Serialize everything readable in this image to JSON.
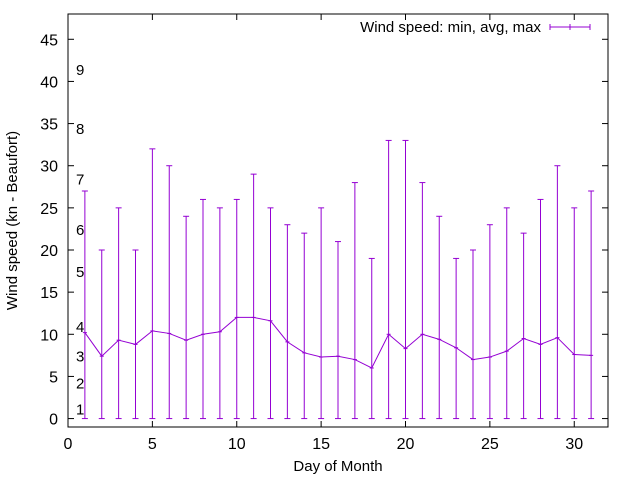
{
  "chart_data": {
    "type": "line",
    "xlabel": "Day of Month",
    "ylabel": "Wind speed (kn - Beaufort)",
    "xlim": [
      0,
      32
    ],
    "ylim": [
      -1,
      48
    ],
    "x_ticks": [
      0,
      5,
      10,
      15,
      20,
      25,
      30
    ],
    "y_ticks": [
      0,
      5,
      10,
      15,
      20,
      25,
      30,
      35,
      40,
      45
    ],
    "grid": false,
    "legend_position": "top-right",
    "series": [
      {
        "name": "Wind speed: min, avg, max",
        "color": "#9400d3",
        "x": [
          1,
          2,
          3,
          4,
          5,
          6,
          7,
          8,
          9,
          10,
          11,
          12,
          13,
          14,
          15,
          16,
          17,
          18,
          19,
          20,
          21,
          22,
          23,
          24,
          25,
          26,
          27,
          28,
          29,
          30,
          31
        ],
        "avg": [
          10.2,
          7.4,
          9.3,
          8.8,
          10.4,
          10.1,
          9.3,
          10.0,
          10.3,
          12.0,
          12.0,
          11.6,
          9.1,
          7.8,
          7.3,
          7.4,
          7.0,
          6.0,
          10.0,
          8.3,
          10.0,
          9.4,
          8.4,
          7.0,
          7.3,
          8.0,
          9.5,
          8.8,
          9.6,
          7.6,
          7.5
        ],
        "min": [
          0,
          0,
          0,
          0,
          0,
          0,
          0,
          0,
          0,
          0,
          0,
          0,
          0,
          0,
          0,
          0,
          0,
          0,
          0,
          0,
          0,
          0,
          0,
          0,
          0,
          0,
          0,
          0,
          0,
          0,
          0
        ],
        "max": [
          27,
          20,
          25,
          20,
          32,
          30,
          24,
          26,
          25,
          26,
          29,
          25,
          23,
          22,
          25,
          21,
          28,
          19,
          33,
          33,
          28,
          24,
          19,
          20,
          23,
          25,
          22,
          26,
          30,
          25,
          27
        ]
      }
    ],
    "annotations": [
      {
        "text": "1",
        "y": 1.2
      },
      {
        "text": "2",
        "y": 4.3
      },
      {
        "text": "3",
        "y": 7.5
      },
      {
        "text": "4",
        "y": 11.0
      },
      {
        "text": "5",
        "y": 17.5
      },
      {
        "text": "6",
        "y": 22.5
      },
      {
        "text": "7",
        "y": 28.5
      },
      {
        "text": "8",
        "y": 34.5
      },
      {
        "text": "9",
        "y": 41.5
      }
    ]
  }
}
